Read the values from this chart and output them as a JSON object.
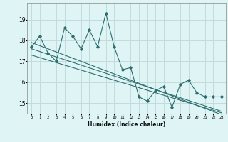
{
  "xlabel": "Humidex (Indice chaleur)",
  "x": [
    0,
    1,
    2,
    3,
    4,
    5,
    6,
    7,
    8,
    9,
    10,
    11,
    12,
    13,
    14,
    15,
    16,
    17,
    18,
    19,
    20,
    21,
    22,
    23
  ],
  "y_main": [
    17.7,
    18.2,
    17.4,
    17.0,
    18.6,
    18.2,
    17.6,
    18.5,
    17.7,
    19.3,
    17.7,
    16.6,
    16.7,
    15.3,
    15.1,
    15.6,
    15.8,
    14.8,
    15.9,
    16.1,
    15.5,
    15.3,
    15.3,
    15.3
  ],
  "y_trend1": [
    17.9,
    17.75,
    17.6,
    17.45,
    17.3,
    17.15,
    17.0,
    16.85,
    16.7,
    16.55,
    16.4,
    16.25,
    16.1,
    15.95,
    15.8,
    15.65,
    15.5,
    15.35,
    15.2,
    15.05,
    14.9,
    14.75,
    14.6,
    14.45
  ],
  "y_trend2": [
    17.6,
    17.47,
    17.34,
    17.21,
    17.08,
    16.95,
    16.82,
    16.69,
    16.56,
    16.43,
    16.3,
    16.17,
    16.04,
    15.91,
    15.78,
    15.65,
    15.52,
    15.39,
    15.26,
    15.13,
    15.0,
    14.87,
    14.74,
    14.61
  ],
  "y_trend3": [
    17.3,
    17.18,
    17.06,
    16.94,
    16.82,
    16.7,
    16.58,
    16.46,
    16.34,
    16.22,
    16.1,
    15.98,
    15.86,
    15.74,
    15.62,
    15.5,
    15.38,
    15.26,
    15.14,
    15.02,
    14.9,
    14.78,
    14.66,
    14.54
  ],
  "line_color": "#2d6e6e",
  "bg_color": "#dff4f4",
  "grid_color": "#c2dcdc",
  "ylim": [
    14.5,
    19.8
  ],
  "yticks": [
    15,
    16,
    17,
    18,
    19
  ],
  "xlim": [
    -0.5,
    23.5
  ]
}
